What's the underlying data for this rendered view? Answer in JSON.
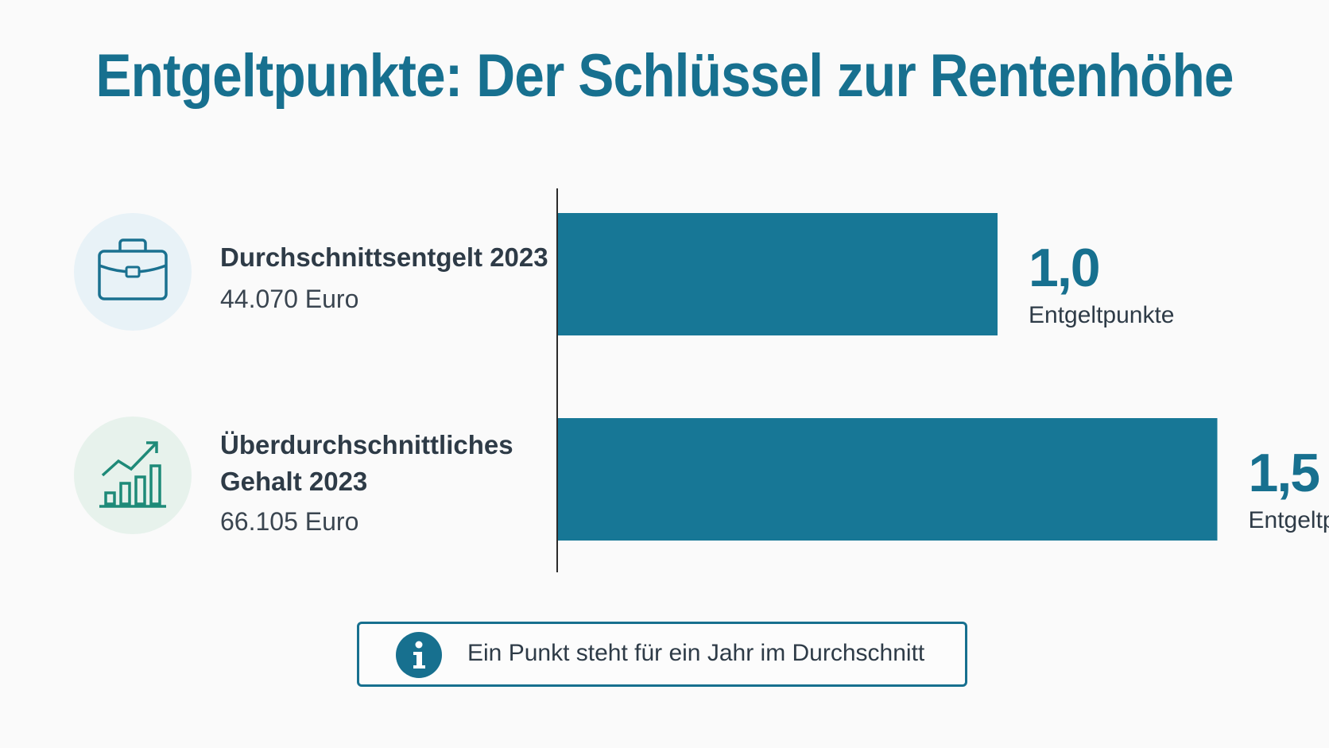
{
  "title": "Entgeltpunkte: Der Schlüssel zur Rentenhöhe",
  "colors": {
    "accent": "#17708f",
    "bar": "#177796",
    "icon_bg_1": "#e8f2f7",
    "icon_bg_2": "#e7f2ec",
    "icon_stroke_1": "#1a7190",
    "icon_stroke_2": "#1e8a78"
  },
  "rows": [
    {
      "icon": "briefcase-icon",
      "label_lines": [
        "Durchschnittsentgelt 2023"
      ],
      "amount": "44.070 Euro"
    },
    {
      "icon": "growth-chart-icon",
      "label_lines": [
        "Überdurchschnittliches",
        "Gehalt 2023"
      ],
      "amount": "66.105 Euro"
    }
  ],
  "chart_data": {
    "type": "bar",
    "orientation": "horizontal",
    "categories": [
      "Durchschnittsentgelt 2023",
      "Überdurchschnittliches Gehalt 2023"
    ],
    "values": [
      1.0,
      1.5
    ],
    "value_labels": [
      "1,0",
      "1,5"
    ],
    "unit_label": "Entgeltpunkte",
    "xlim": [
      0,
      1.5
    ],
    "grid": false
  },
  "info": {
    "icon": "info-icon",
    "text": "Ein Punkt steht für ein Jahr im Durchschnitt"
  }
}
